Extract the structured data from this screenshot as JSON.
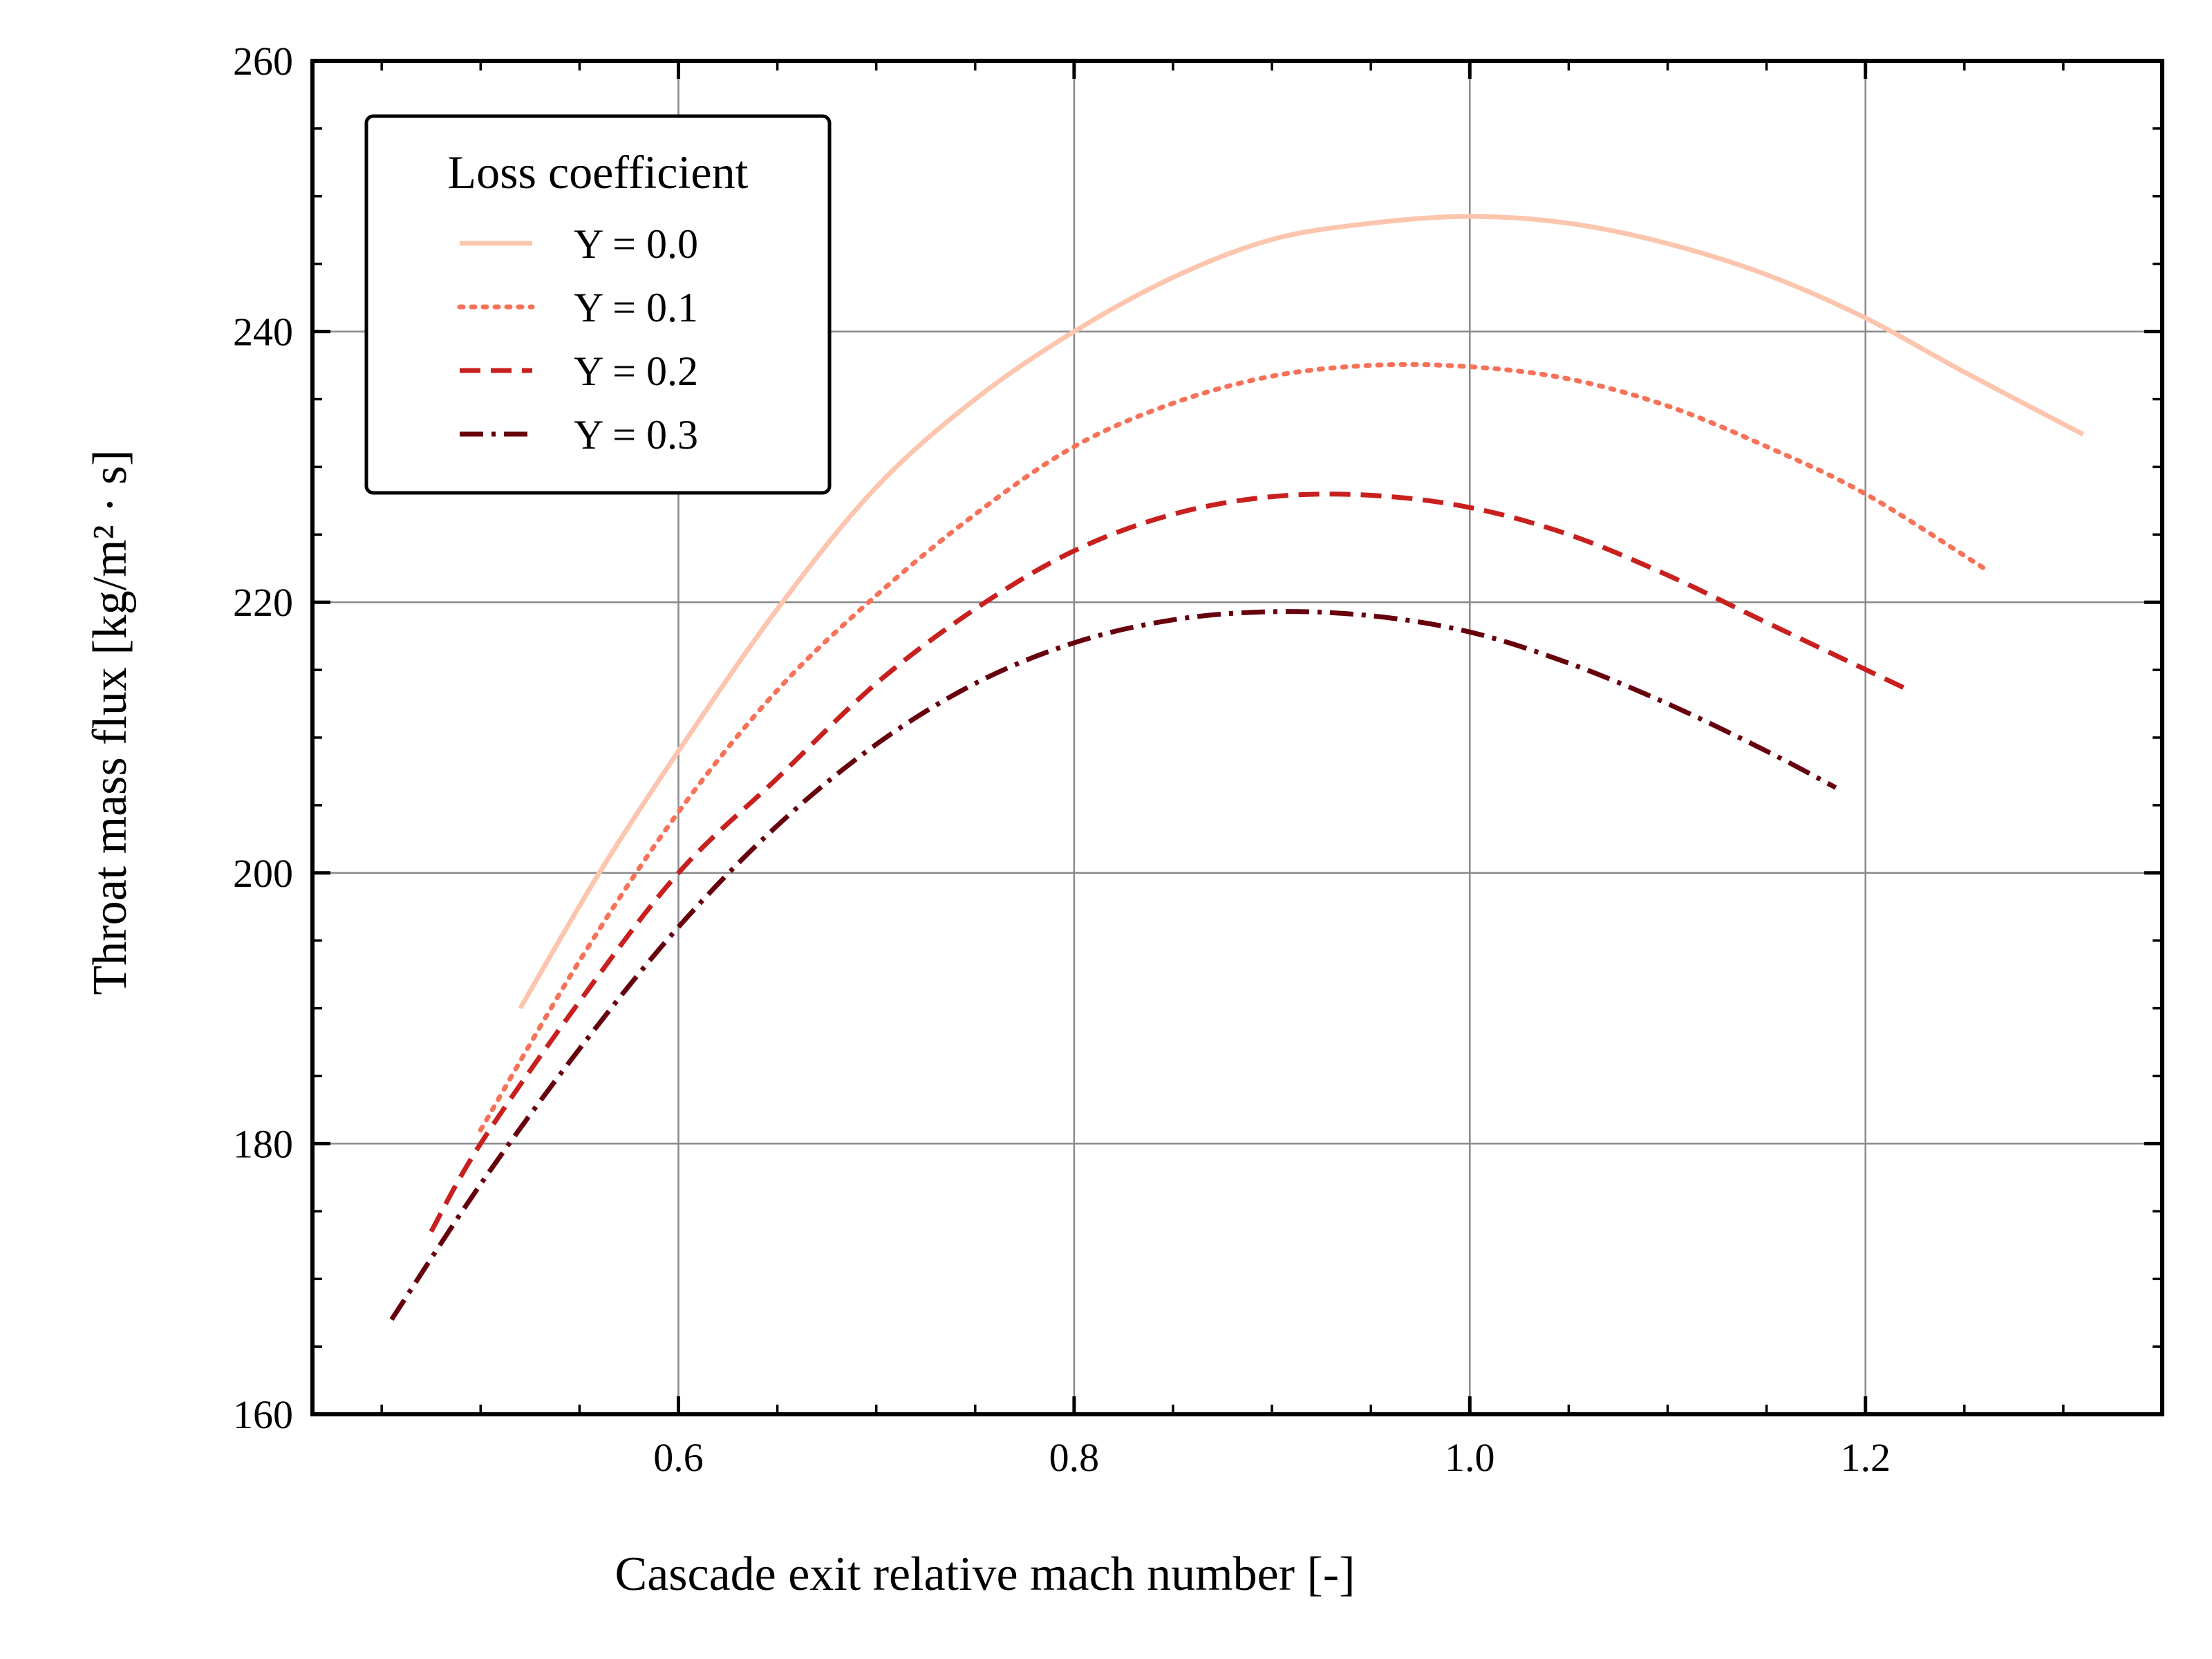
{
  "chart_data": {
    "type": "line",
    "xlabel": "Cascade exit relative mach number [-]",
    "ylabel": "Throat mass flux [kg/m² · s]",
    "xlim": [
      0.415,
      1.35
    ],
    "ylim": [
      160,
      260
    ],
    "x_ticks": [
      {
        "value": 0.6,
        "label": "0.6"
      },
      {
        "value": 0.8,
        "label": "0.8"
      },
      {
        "value": 1.0,
        "label": "1.0"
      },
      {
        "value": 1.2,
        "label": "1.2"
      }
    ],
    "y_ticks": [
      {
        "value": 160,
        "label": "160"
      },
      {
        "value": 180,
        "label": "180"
      },
      {
        "value": 200,
        "label": "200"
      },
      {
        "value": 220,
        "label": "220"
      },
      {
        "value": 240,
        "label": "240"
      },
      {
        "value": 260,
        "label": "260"
      }
    ],
    "x_minor_step": 0.05,
    "y_minor_step": 5,
    "grid": true,
    "legend": {
      "title": "Loss coefficient",
      "placement": "top-left"
    },
    "series": [
      {
        "name": "Y = 0.0",
        "color": "#fcc5ae",
        "style": "solid",
        "x": [
          0.52,
          0.56,
          0.6,
          0.65,
          0.7,
          0.75,
          0.8,
          0.85,
          0.9,
          0.95,
          1.0,
          1.05,
          1.1,
          1.15,
          1.2,
          1.25,
          1.31
        ],
        "y": [
          190.0,
          200.0,
          209.0,
          219.5,
          228.5,
          235.0,
          240.0,
          244.0,
          246.8,
          248.0,
          248.5,
          248.0,
          246.5,
          244.2,
          241.0,
          237.0,
          232.4
        ]
      },
      {
        "name": "Y = 0.1",
        "color": "#f6735a",
        "style": "dotted",
        "x": [
          0.5,
          0.55,
          0.6,
          0.65,
          0.7,
          0.75,
          0.8,
          0.85,
          0.9,
          0.95,
          1.0,
          1.05,
          1.1,
          1.15,
          1.2,
          1.26
        ],
        "y": [
          181.0,
          193.5,
          204.5,
          213.5,
          220.5,
          226.5,
          231.5,
          234.7,
          236.7,
          237.5,
          237.4,
          236.5,
          234.5,
          231.5,
          228.0,
          222.5
        ]
      },
      {
        "name": "Y = 0.2",
        "color": "#c8201f",
        "style": "dashed",
        "x": [
          0.475,
          0.5,
          0.55,
          0.6,
          0.65,
          0.7,
          0.75,
          0.8,
          0.85,
          0.9,
          0.95,
          1.0,
          1.05,
          1.1,
          1.15,
          1.222
        ],
        "y": [
          173.5,
          180.0,
          190.5,
          200.0,
          207.0,
          214.0,
          219.5,
          223.8,
          226.5,
          227.8,
          227.9,
          227.0,
          225.0,
          222.0,
          218.5,
          213.5
        ]
      },
      {
        "name": "Y = 0.3",
        "color": "#67000d",
        "style": "dashdot",
        "x": [
          0.455,
          0.5,
          0.55,
          0.6,
          0.65,
          0.7,
          0.75,
          0.8,
          0.85,
          0.9,
          0.95,
          1.0,
          1.05,
          1.1,
          1.15,
          1.185
        ],
        "y": [
          167.0,
          177.0,
          187.0,
          196.0,
          203.5,
          209.5,
          214.0,
          217.0,
          218.7,
          219.3,
          219.0,
          217.8,
          215.5,
          212.5,
          209.0,
          206.3
        ]
      }
    ]
  }
}
